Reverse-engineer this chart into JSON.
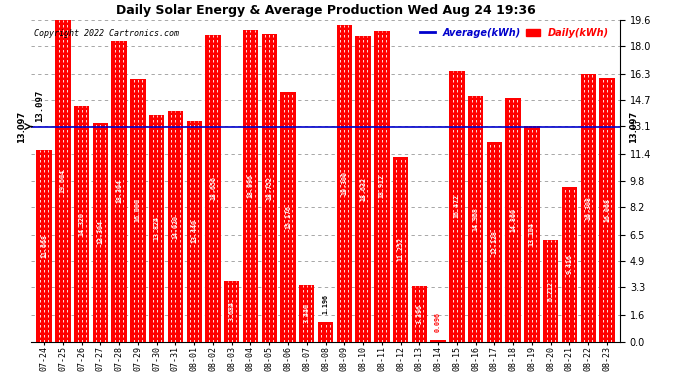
{
  "title": "Daily Solar Energy & Average Production Wed Aug 24 19:36",
  "copyright": "Copyright 2022 Cartronics.com",
  "average_label": "Average(kWh)",
  "daily_label": "Daily(kWh)",
  "average_value": 13.097,
  "categories": [
    "07-24",
    "07-25",
    "07-26",
    "07-27",
    "07-28",
    "07-29",
    "07-30",
    "07-31",
    "08-01",
    "08-02",
    "08-03",
    "08-04",
    "08-05",
    "08-06",
    "08-07",
    "08-08",
    "08-09",
    "08-10",
    "08-11",
    "08-12",
    "08-13",
    "08-14",
    "08-15",
    "08-16",
    "08-17",
    "08-18",
    "08-19",
    "08-20",
    "08-21",
    "08-22",
    "08-23"
  ],
  "values": [
    11.668,
    19.604,
    14.32,
    13.304,
    18.304,
    16.0,
    13.824,
    14.02,
    13.44,
    18.656,
    3.684,
    18.996,
    18.752,
    15.176,
    3.44,
    1.196,
    19.3,
    18.632,
    18.912,
    11.252,
    3.396,
    0.096,
    16.472,
    14.968,
    12.128,
    14.86,
    13.104,
    6.212,
    9.416,
    16.308,
    16.068
  ],
  "bar_color": "#ff0000",
  "average_line_color": "#0000cc",
  "average_label_color": "#0000cc",
  "daily_label_color": "#ff0000",
  "title_color": "#000000",
  "copyright_color": "#000000",
  "background_color": "#ffffff",
  "grid_color": "#999999",
  "bar_label_color": "#ffffff",
  "ylim": [
    0,
    19.6
  ],
  "yticks": [
    0.0,
    1.6,
    3.3,
    4.9,
    6.5,
    8.2,
    9.8,
    11.4,
    13.1,
    14.7,
    16.3,
    18.0,
    19.6
  ]
}
